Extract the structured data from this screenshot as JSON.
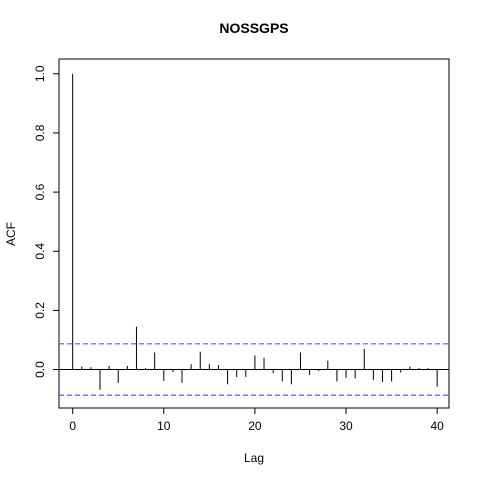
{
  "chart_data": {
    "type": "bar",
    "title": "NOSSGPS",
    "xlabel": "Lag",
    "ylabel": "ACF",
    "xlim": [
      -1.5,
      41.3
    ],
    "ylim": [
      -0.13,
      1.05
    ],
    "xticks": [
      0,
      10,
      20,
      30,
      40
    ],
    "yticks": [
      0.0,
      0.2,
      0.4,
      0.6,
      0.8,
      1.0
    ],
    "xtick_labels": [
      "0",
      "10",
      "20",
      "30",
      "40"
    ],
    "ytick_labels": [
      "0.0",
      "0.2",
      "0.4",
      "0.6",
      "0.8",
      "1.0"
    ],
    "confidence_bound": 0.087,
    "ci_color": "#5b5bdc",
    "lags": [
      0,
      1,
      2,
      3,
      4,
      5,
      6,
      7,
      8,
      9,
      10,
      11,
      12,
      13,
      14,
      15,
      16,
      17,
      18,
      19,
      20,
      21,
      22,
      23,
      24,
      25,
      26,
      27,
      28,
      29,
      30,
      31,
      32,
      33,
      34,
      35,
      36,
      37,
      38,
      39,
      40
    ],
    "values": [
      1.0,
      0.01,
      0.008,
      -0.068,
      0.012,
      -0.045,
      0.012,
      0.145,
      0.005,
      0.058,
      -0.038,
      -0.008,
      -0.045,
      0.018,
      0.06,
      0.018,
      0.015,
      -0.05,
      -0.025,
      -0.025,
      0.048,
      0.04,
      -0.012,
      -0.04,
      -0.05,
      0.058,
      -0.018,
      -0.005,
      0.03,
      -0.04,
      -0.028,
      -0.03,
      0.07,
      -0.035,
      -0.042,
      -0.04,
      -0.01,
      0.01,
      0.005,
      0.005,
      -0.058
    ]
  }
}
